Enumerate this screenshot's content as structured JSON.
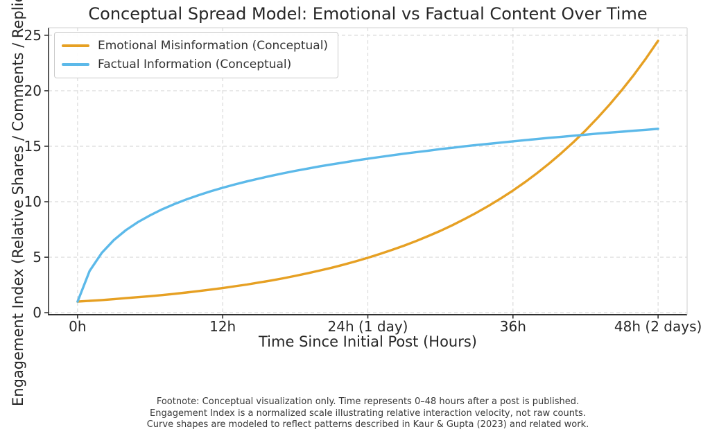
{
  "chart_data": {
    "type": "line",
    "title": "Conceptual Spread Model: Emotional vs Factual Content Over Time",
    "xlabel": "Time Since Initial Post (Hours)",
    "ylabel": "Engagement Index (Relative Shares / Comments / Replies)",
    "xlim": [
      -2.4,
      50.4
    ],
    "ylim": [
      -0.18,
      25.68
    ],
    "grid": "dashed",
    "legend_position": "upper-left",
    "x_ticks": {
      "values": [
        0,
        12,
        24,
        36,
        48
      ],
      "labels": [
        "0h",
        "12h",
        "24h (1 day)",
        "36h",
        "48h (2 days)"
      ]
    },
    "y_ticks": {
      "values": [
        0,
        5,
        10,
        15,
        20,
        25
      ],
      "labels": [
        "0",
        "5",
        "10",
        "15",
        "20",
        "25"
      ]
    },
    "x_hours": [
      0,
      1,
      2,
      3,
      4,
      5,
      6,
      7,
      8,
      9,
      10,
      11,
      12,
      13,
      14,
      15,
      16,
      17,
      18,
      19,
      20,
      21,
      22,
      23,
      24,
      25,
      26,
      27,
      28,
      29,
      30,
      31,
      32,
      33,
      34,
      35,
      36,
      37,
      38,
      39,
      40,
      41,
      42,
      43,
      44,
      45,
      46,
      47,
      48
    ],
    "series": [
      {
        "name": "Emotional Misinformation (Conceptual)",
        "color": "#E6A023",
        "values": [
          1.0,
          1.07,
          1.14,
          1.22,
          1.31,
          1.4,
          1.49,
          1.59,
          1.7,
          1.82,
          1.95,
          2.08,
          2.22,
          2.38,
          2.54,
          2.72,
          2.9,
          3.1,
          3.32,
          3.55,
          3.79,
          4.05,
          4.33,
          4.63,
          4.95,
          5.29,
          5.66,
          6.04,
          6.46,
          6.91,
          7.38,
          7.89,
          8.44,
          9.02,
          9.64,
          10.3,
          11.01,
          11.77,
          12.58,
          13.45,
          14.38,
          15.37,
          16.42,
          17.56,
          18.77,
          20.06,
          21.44,
          22.92,
          24.5
        ]
      },
      {
        "name": "Factual Information (Conceptual)",
        "color": "#5CB9E9",
        "values": [
          1.0,
          3.77,
          5.39,
          6.55,
          7.44,
          8.17,
          8.78,
          9.32,
          9.79,
          10.21,
          10.59,
          10.94,
          11.26,
          11.56,
          11.83,
          12.09,
          12.33,
          12.56,
          12.78,
          12.98,
          13.18,
          13.36,
          13.54,
          13.71,
          13.88,
          14.03,
          14.18,
          14.33,
          14.47,
          14.6,
          14.74,
          14.86,
          14.99,
          15.11,
          15.22,
          15.33,
          15.44,
          15.55,
          15.65,
          15.76,
          15.85,
          15.95,
          16.04,
          16.14,
          16.23,
          16.31,
          16.4,
          16.48,
          16.57
        ]
      }
    ],
    "style": {
      "grid_color": "#dadada",
      "spine_dark": "#303030",
      "spine_light": "#d2d2d2",
      "line_width": 3.4
    }
  },
  "footnote_lines": [
    "Footnote: Conceptual visualization only. Time represents 0–48 hours after a post is published.",
    "Engagement Index is a normalized scale illustrating relative interaction velocity, not raw counts.",
    "Curve shapes are modeled to reflect patterns described in Kaur & Gupta (2023) and related work."
  ]
}
